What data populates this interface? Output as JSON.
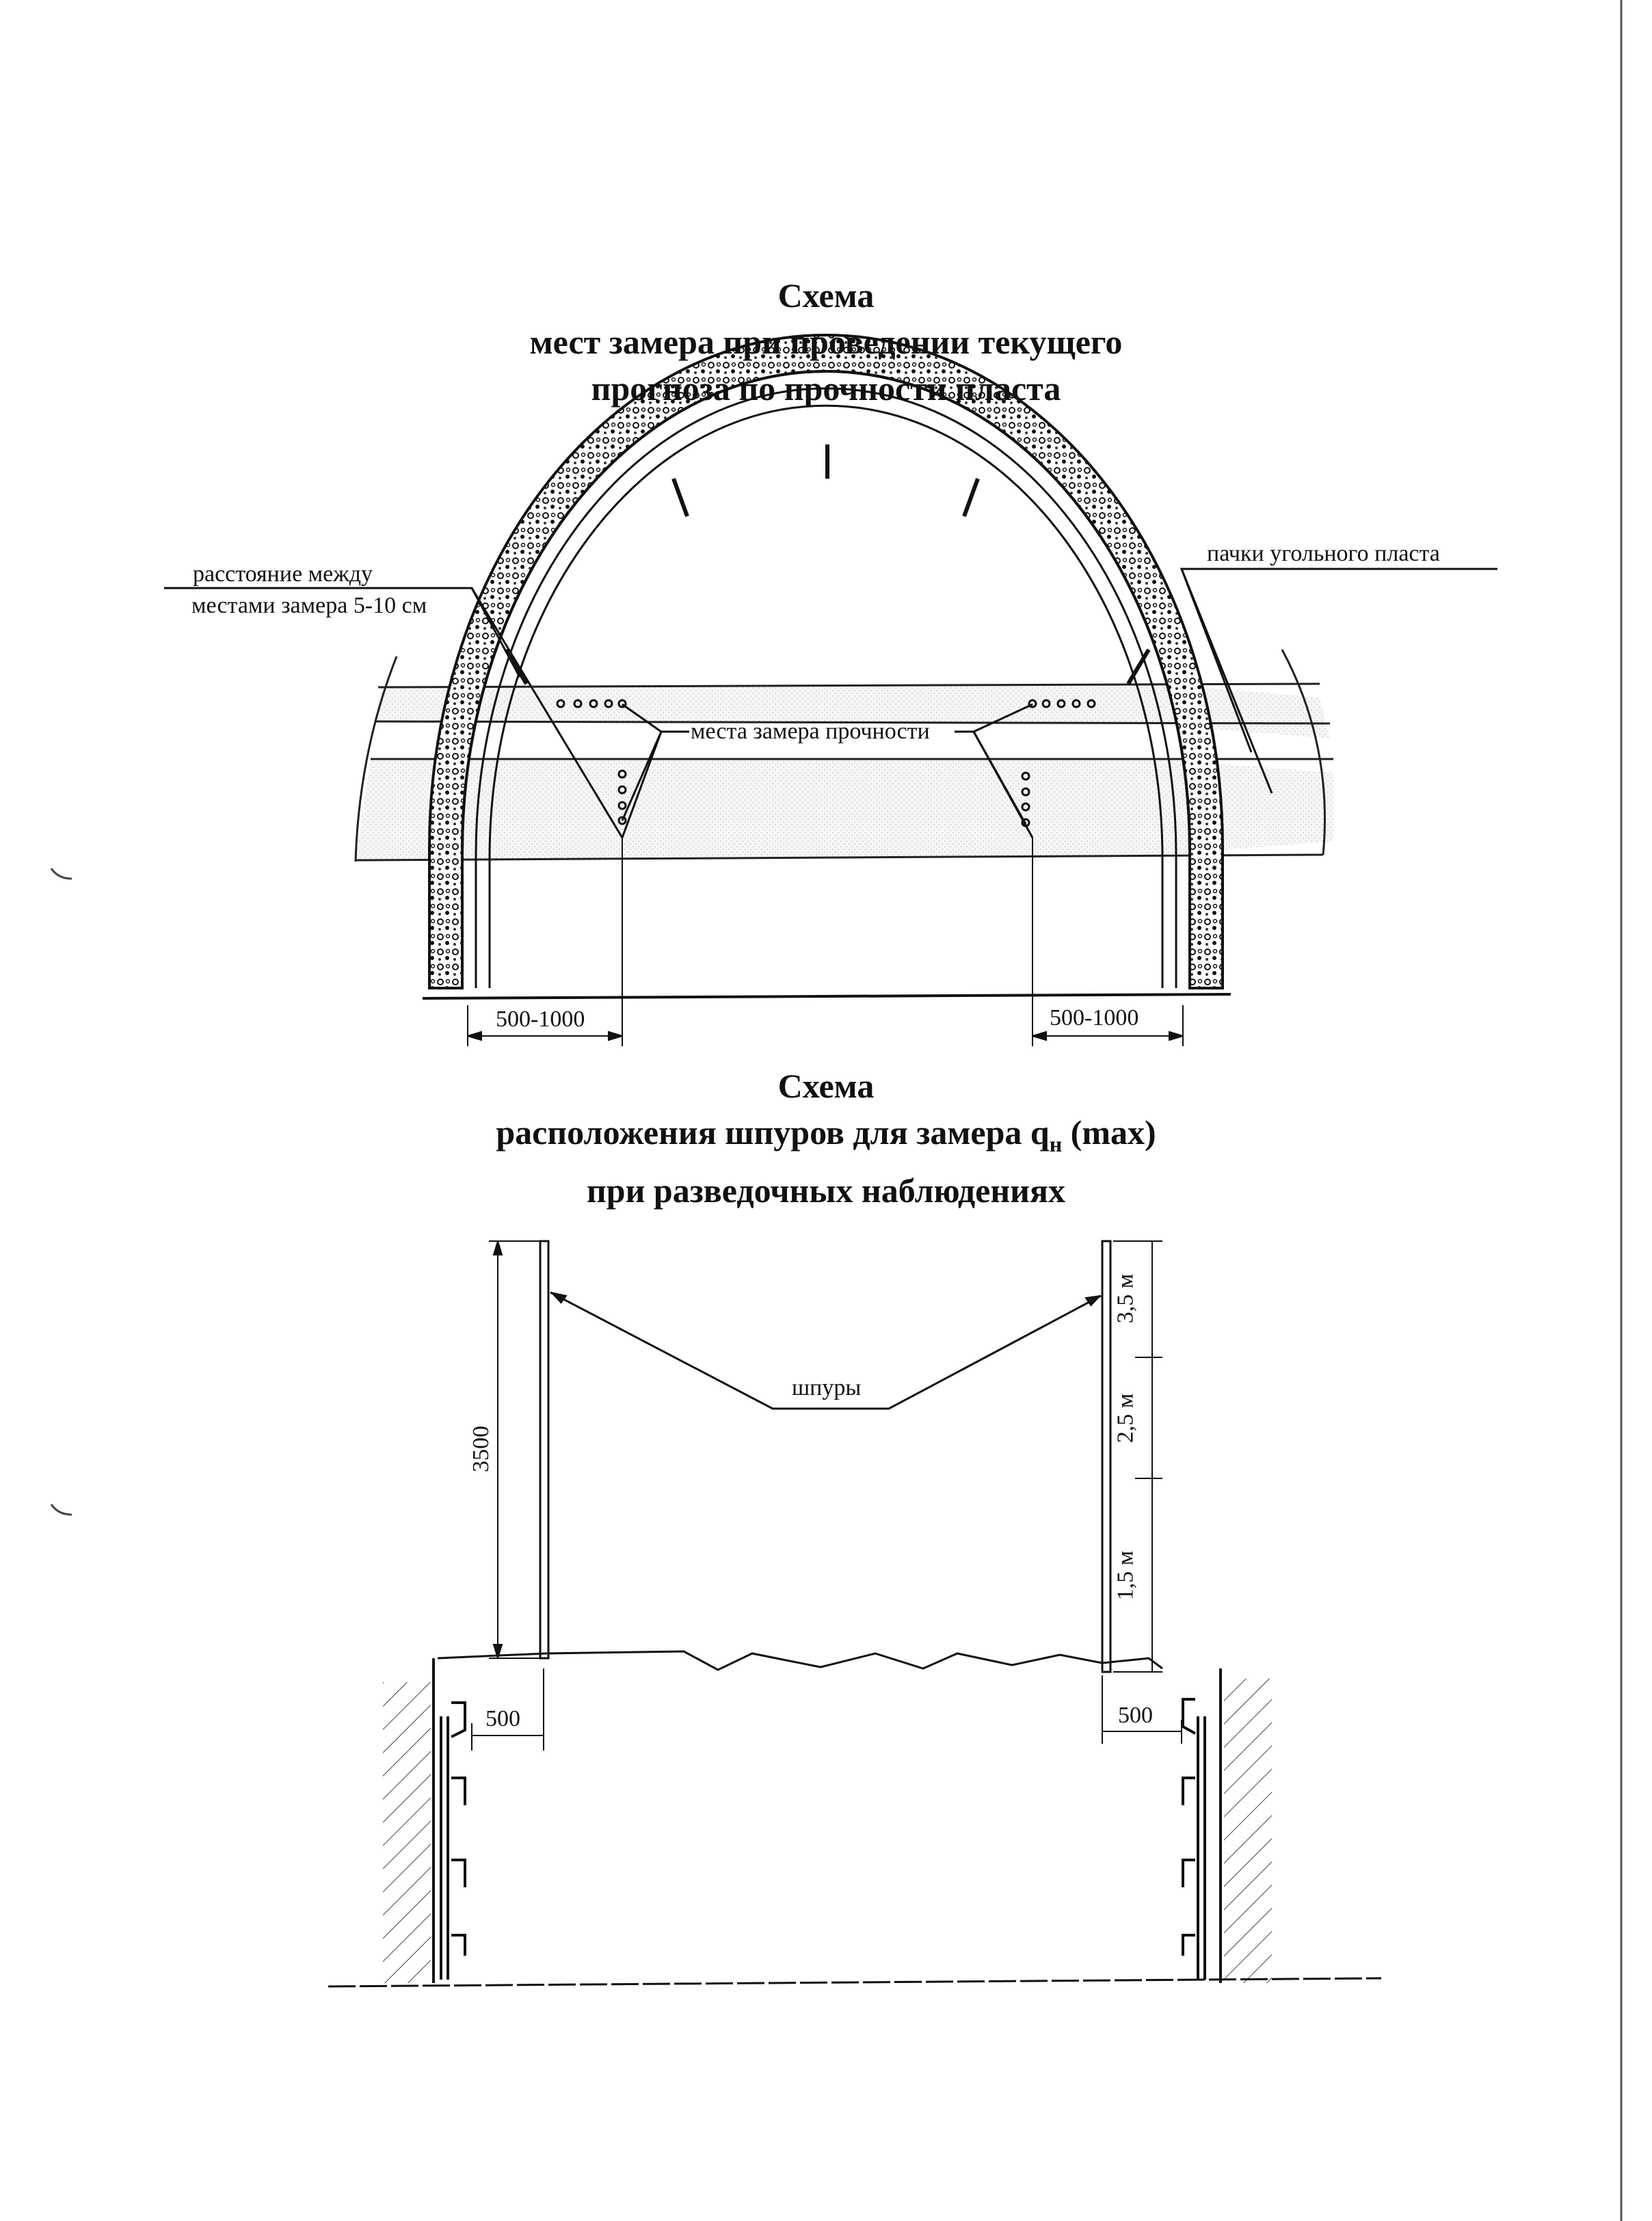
{
  "diagram1": {
    "title": {
      "line1": "Схема",
      "line2": "мест замера при проведении текущего",
      "line3": "прогноза по прочности пласта"
    },
    "labels": {
      "distance_line1": "расстояние между",
      "distance_line2": "местами замера 5-10 см",
      "coal_seam": "пачки угольного пласта",
      "measure_points": "места замера прочности"
    },
    "dimensions": {
      "left": "500-1000",
      "right": "500-1000"
    }
  },
  "diagram2": {
    "title": {
      "line1": "Схема",
      "line2_prefix": "расположения шпуров для  замера q",
      "line2_sub": "н",
      "line2_suffix": " (max)",
      "line3": "при разведочных наблюдениях"
    },
    "labels": {
      "holes": "шпуры"
    },
    "dimensions": {
      "height": "3500",
      "left_offset": "500",
      "right_offset": "500",
      "seg_top": "3,5 м",
      "seg_middle": "2,5 м",
      "seg_bottom": "1,5 м"
    }
  }
}
